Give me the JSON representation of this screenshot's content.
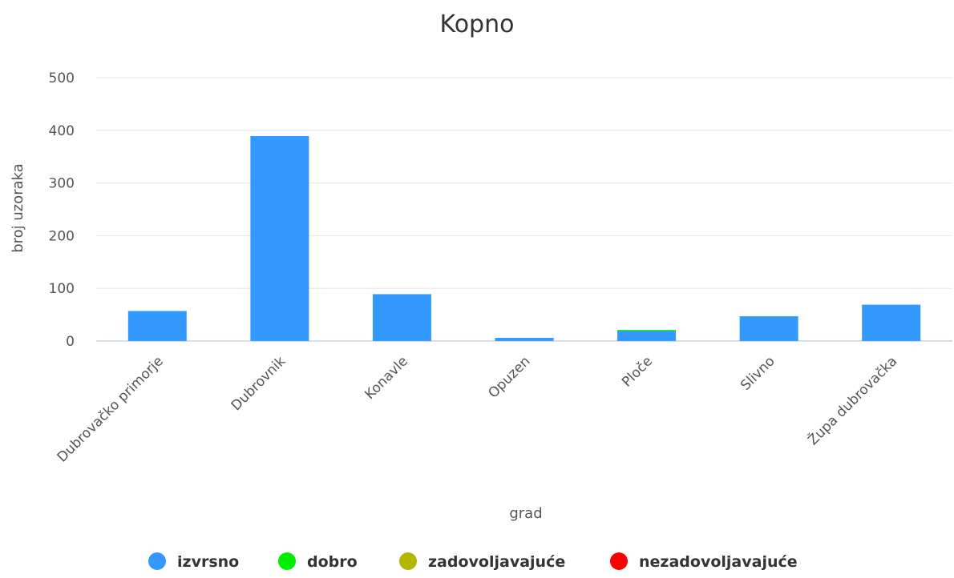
{
  "chart_data": {
    "type": "bar",
    "stacked": true,
    "title": "Kopno",
    "xlabel": "grad",
    "ylabel": "broj uzoraka",
    "ylim": [
      0,
      500
    ],
    "yticks": [
      0,
      100,
      200,
      300,
      400,
      500
    ],
    "grid": true,
    "legend_position": "bottom",
    "categories": [
      "Dubrovačko primorje",
      "Dubrovnik",
      "Konavle",
      "Opuzen",
      "Ploče",
      "Slivno",
      "Župa dubrovačka"
    ],
    "series": [
      {
        "name": "izvrsno",
        "color": "#3399ff",
        "values": [
          57,
          389,
          89,
          6,
          19,
          47,
          69
        ]
      },
      {
        "name": "dobro",
        "color": "#00ee00",
        "values": [
          0,
          0,
          0,
          0,
          2,
          0,
          0
        ]
      },
      {
        "name": "zadovoljavajuće",
        "color": "#b5b500",
        "values": [
          0,
          0,
          0,
          0,
          0,
          0,
          0
        ]
      },
      {
        "name": "nezadovoljavajuće",
        "color": "#ff0000",
        "values": [
          0,
          0,
          0,
          0,
          0,
          0,
          0
        ]
      }
    ]
  }
}
